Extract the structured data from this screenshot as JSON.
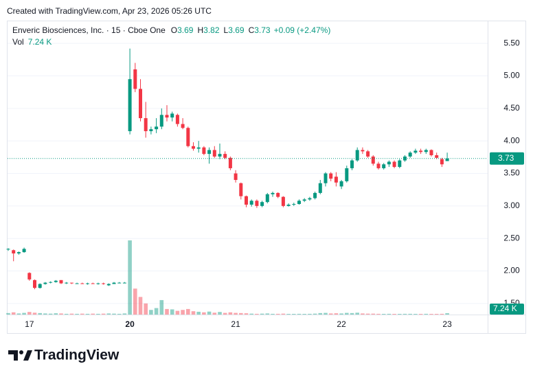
{
  "created": "Created with TradingView.com, Apr 23, 2026 05:26 UTC",
  "footer": "TradingView",
  "chart_data": {
    "type": "candlestick",
    "title": "Enveric Biosciences, Inc. · 15 · Cboe One",
    "ohlc_labels": [
      "O",
      "H",
      "L",
      "C"
    ],
    "change": "+0.09 (+2.47%)",
    "volume_name": "Vol",
    "volume_label": "7.24 K",
    "up_color": "#089981",
    "down_color": "#f23645",
    "categories": [
      null,
      null,
      null,
      null,
      "17",
      null,
      null,
      null,
      null,
      null,
      null,
      null,
      null,
      null,
      null,
      null,
      null,
      null,
      null,
      null,
      null,
      null,
      null,
      "20",
      null,
      null,
      null,
      null,
      null,
      null,
      null,
      null,
      null,
      null,
      null,
      null,
      null,
      null,
      null,
      null,
      null,
      null,
      null,
      "21",
      null,
      null,
      null,
      null,
      null,
      null,
      null,
      null,
      null,
      null,
      null,
      null,
      null,
      null,
      null,
      null,
      null,
      null,
      null,
      "22",
      null,
      null,
      null,
      null,
      null,
      null,
      null,
      null,
      null,
      null,
      null,
      null,
      null,
      null,
      null,
      null,
      null,
      null,
      null,
      "23"
    ],
    "open": [
      2.33,
      2.32,
      2.27,
      2.29,
      1.97,
      1.86,
      1.74,
      1.8,
      1.82,
      1.83,
      1.86,
      1.81,
      1.82,
      1.81,
      1.81,
      1.8,
      1.81,
      1.8,
      1.81,
      1.78,
      1.8,
      1.82,
      1.82,
      4.15,
      5.1,
      4.8,
      4.35,
      4.15,
      4.18,
      4.22,
      4.4,
      4.36,
      4.4,
      4.26,
      4.2,
      3.92,
      3.88,
      3.9,
      3.8,
      3.86,
      3.76,
      3.8,
      3.74,
      3.5,
      3.35,
      3.15,
      3.02,
      3.08,
      3.0,
      3.06,
      3.18,
      3.2,
      3.14,
      3.0,
      3.02,
      3.03,
      3.08,
      3.1,
      3.12,
      3.2,
      3.35,
      3.5,
      3.45,
      3.3,
      3.38,
      3.58,
      3.7,
      3.86,
      3.84,
      3.76,
      3.65,
      3.58,
      3.64,
      3.68,
      3.6,
      3.7,
      3.76,
      3.82,
      3.85,
      3.83,
      3.86,
      3.78,
      3.72,
      3.69
    ],
    "high": [
      2.35,
      2.33,
      2.3,
      2.36,
      1.98,
      1.87,
      1.81,
      1.83,
      1.84,
      1.86,
      1.86,
      1.83,
      1.82,
      1.82,
      1.82,
      1.82,
      1.82,
      1.82,
      1.82,
      1.81,
      1.83,
      1.83,
      1.83,
      5.42,
      5.2,
      4.95,
      4.6,
      4.22,
      4.35,
      4.5,
      4.55,
      4.45,
      4.42,
      4.35,
      4.22,
      3.98,
      4.0,
      3.92,
      3.9,
      3.92,
      3.96,
      3.84,
      3.76,
      3.55,
      3.36,
      3.16,
      3.1,
      3.1,
      3.08,
      3.2,
      3.22,
      3.21,
      3.15,
      3.04,
      3.05,
      3.1,
      3.12,
      3.14,
      3.22,
      3.4,
      3.52,
      3.52,
      3.52,
      3.4,
      3.62,
      3.72,
      3.9,
      3.9,
      3.86,
      3.78,
      3.68,
      3.66,
      3.7,
      3.7,
      3.72,
      3.78,
      3.84,
      3.88,
      3.88,
      3.88,
      3.87,
      3.82,
      3.74,
      3.82
    ],
    "low": [
      2.31,
      2.15,
      2.25,
      2.28,
      1.85,
      1.72,
      1.73,
      1.79,
      1.81,
      1.82,
      1.8,
      1.8,
      1.8,
      1.8,
      1.8,
      1.79,
      1.8,
      1.79,
      1.79,
      1.77,
      1.8,
      1.81,
      1.81,
      4.1,
      4.75,
      4.3,
      4.05,
      4.1,
      4.12,
      4.18,
      4.3,
      4.3,
      4.22,
      4.18,
      3.9,
      3.85,
      3.82,
      3.78,
      3.65,
      3.74,
      3.72,
      3.72,
      3.55,
      3.36,
      3.1,
      2.98,
      2.99,
      2.97,
      2.98,
      3.04,
      3.14,
      3.12,
      2.98,
      2.99,
      3.0,
      3.02,
      3.06,
      3.08,
      3.1,
      3.18,
      3.3,
      3.38,
      3.3,
      3.26,
      3.36,
      3.55,
      3.68,
      3.8,
      3.74,
      3.62,
      3.56,
      3.56,
      3.6,
      3.58,
      3.58,
      3.68,
      3.74,
      3.8,
      3.8,
      3.8,
      3.76,
      3.72,
      3.6,
      3.69
    ],
    "close": [
      2.34,
      2.27,
      2.29,
      2.34,
      1.87,
      1.74,
      1.8,
      1.82,
      1.83,
      1.85,
      1.81,
      1.82,
      1.81,
      1.81,
      1.8,
      1.81,
      1.8,
      1.81,
      1.8,
      1.8,
      1.82,
      1.82,
      1.82,
      4.95,
      4.8,
      4.35,
      4.15,
      4.18,
      4.22,
      4.4,
      4.36,
      4.42,
      4.26,
      4.2,
      3.92,
      3.88,
      3.9,
      3.8,
      3.86,
      3.76,
      3.8,
      3.74,
      3.58,
      3.4,
      3.15,
      3.02,
      3.08,
      3.0,
      3.06,
      3.18,
      3.2,
      3.14,
      3.0,
      3.02,
      3.03,
      3.08,
      3.1,
      3.12,
      3.2,
      3.35,
      3.5,
      3.42,
      3.36,
      3.38,
      3.58,
      3.7,
      3.86,
      3.84,
      3.76,
      3.65,
      3.58,
      3.64,
      3.68,
      3.6,
      3.7,
      3.76,
      3.82,
      3.85,
      3.83,
      3.86,
      3.78,
      3.74,
      3.64,
      3.73
    ],
    "volume": [
      8000,
      12000,
      6000,
      9000,
      14000,
      10000,
      8000,
      6000,
      5000,
      7000,
      6000,
      4000,
      5000,
      4000,
      5000,
      4000,
      5000,
      4000,
      5000,
      6000,
      5000,
      4000,
      6000,
      400000,
      140000,
      95000,
      60000,
      25000,
      35000,
      78000,
      30000,
      28000,
      20000,
      25000,
      30000,
      18000,
      15000,
      12000,
      16000,
      10000,
      14000,
      9000,
      12000,
      9000,
      8000,
      7000,
      5000,
      4000,
      5000,
      6000,
      4000,
      4000,
      5000,
      3000,
      3000,
      4000,
      3000,
      4000,
      5000,
      8000,
      9000,
      6000,
      7000,
      6000,
      9000,
      8000,
      10000,
      6000,
      5000,
      5000,
      4000,
      3000,
      4000,
      3000,
      3000,
      4000,
      4000,
      3000,
      3000,
      4000,
      3000,
      3000,
      4000,
      7240
    ],
    "ylim": [
      1.33,
      5.85
    ],
    "yticks": [
      {
        "value": 5.5,
        "label": "5.50"
      },
      {
        "value": 5.0,
        "label": "5.00"
      },
      {
        "value": 4.5,
        "label": "4.50"
      },
      {
        "value": 4.0,
        "label": "4.00"
      },
      {
        "value": 3.5,
        "label": "3.50"
      },
      {
        "value": 3.0,
        "label": "3.00"
      },
      {
        "value": 2.5,
        "label": "2.50"
      },
      {
        "value": 2.0,
        "label": "2.00"
      },
      {
        "value": 1.5,
        "label": "1.50"
      }
    ],
    "grid": true
  }
}
